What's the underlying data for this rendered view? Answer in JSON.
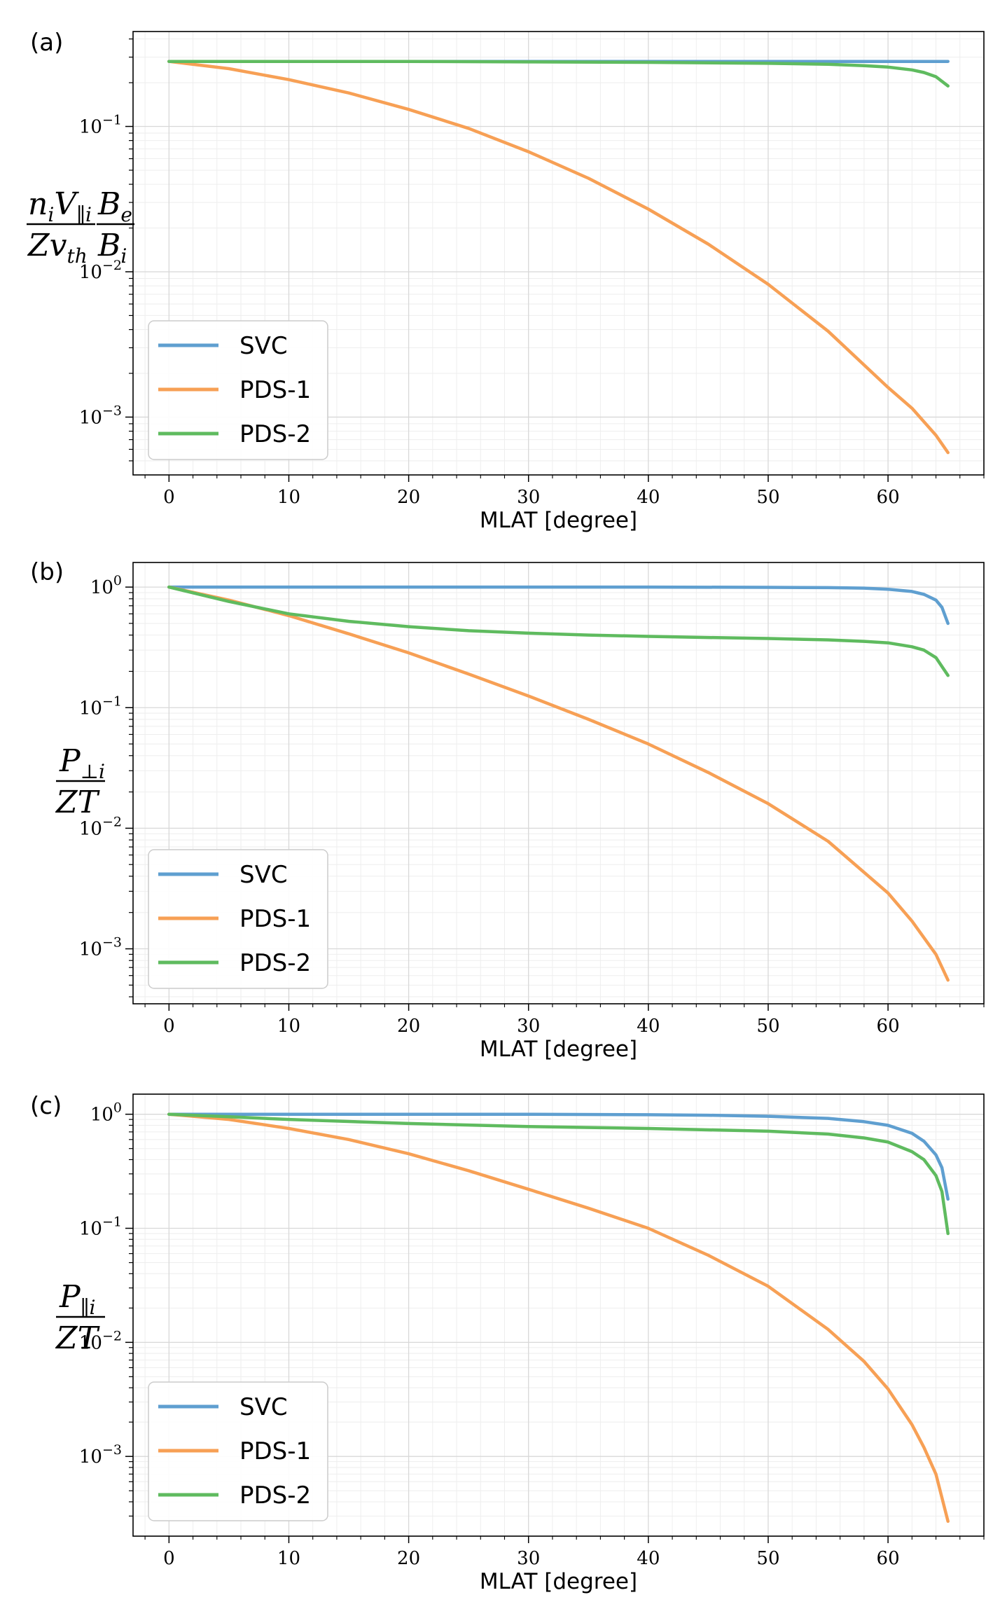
{
  "chart_data": [
    {
      "type": "line",
      "panel_label": "(a)",
      "xlabel": "MLAT [degree]",
      "ylabel": {
        "num_main": "n",
        "num_sub": "i",
        "num_main2": "V",
        "num_sub2": "∥i",
        "den_main": "Zv",
        "den_sub": "th",
        "ratio_num": "B",
        "ratio_num_sub": "e",
        "ratio_den": "B",
        "ratio_den_sub": "i"
      },
      "yscale": "log",
      "xlim": [
        -3,
        68
      ],
      "ylim": [
        0.0004,
        0.45
      ],
      "x_ticks": [
        0,
        10,
        20,
        30,
        40,
        50,
        60
      ],
      "y_ticks": [
        {
          "value": 0.1,
          "base": "10",
          "exp": "−1"
        },
        {
          "value": 0.01,
          "base": "10",
          "exp": "−2"
        },
        {
          "value": 0.001,
          "base": "10",
          "exp": "−3"
        }
      ],
      "grid": true,
      "legend_position": "lower-left",
      "series": [
        {
          "name": "SVC",
          "color": "#5f9fd0",
          "x": [
            0,
            10,
            20,
            30,
            40,
            50,
            55,
            60,
            63,
            65
          ],
          "y": [
            0.28,
            0.28,
            0.28,
            0.28,
            0.28,
            0.28,
            0.28,
            0.28,
            0.28,
            0.28
          ]
        },
        {
          "name": "PDS-1",
          "color": "#f7a055",
          "x": [
            0,
            5,
            10,
            15,
            20,
            25,
            30,
            35,
            40,
            45,
            50,
            55,
            60,
            62,
            64,
            65
          ],
          "y": [
            0.28,
            0.25,
            0.21,
            0.17,
            0.131,
            0.097,
            0.067,
            0.044,
            0.027,
            0.0155,
            0.0082,
            0.0039,
            0.0016,
            0.00115,
            0.00075,
            0.00057
          ]
        },
        {
          "name": "PDS-2",
          "color": "#5fbb5f",
          "x": [
            0,
            10,
            20,
            30,
            40,
            50,
            55,
            58,
            60,
            62,
            63,
            64,
            65
          ],
          "y": [
            0.28,
            0.28,
            0.28,
            0.278,
            0.276,
            0.272,
            0.268,
            0.262,
            0.256,
            0.245,
            0.235,
            0.22,
            0.19
          ]
        }
      ]
    },
    {
      "type": "line",
      "panel_label": "(b)",
      "xlabel": "MLAT [degree]",
      "ylabel": {
        "num_main": "P",
        "num_sub": "⊥i",
        "den_main": "ZT"
      },
      "yscale": "log",
      "xlim": [
        -3,
        68
      ],
      "ylim": [
        0.00035,
        1.6
      ],
      "x_ticks": [
        0,
        10,
        20,
        30,
        40,
        50,
        60
      ],
      "y_ticks": [
        {
          "value": 1,
          "base": "10",
          "exp": "0"
        },
        {
          "value": 0.1,
          "base": "10",
          "exp": "−1"
        },
        {
          "value": 0.01,
          "base": "10",
          "exp": "−2"
        },
        {
          "value": 0.001,
          "base": "10",
          "exp": "−3"
        }
      ],
      "grid": true,
      "legend_position": "lower-left",
      "series": [
        {
          "name": "SVC",
          "color": "#5f9fd0",
          "x": [
            0,
            10,
            20,
            30,
            40,
            50,
            55,
            58,
            60,
            62,
            63,
            64,
            64.5,
            65
          ],
          "y": [
            1.0,
            1.0,
            1.0,
            1.0,
            1.0,
            0.995,
            0.99,
            0.98,
            0.96,
            0.92,
            0.87,
            0.78,
            0.68,
            0.5
          ]
        },
        {
          "name": "PDS-1",
          "color": "#f7a055",
          "x": [
            0,
            5,
            10,
            15,
            20,
            25,
            30,
            35,
            40,
            45,
            50,
            55,
            60,
            62,
            64,
            65
          ],
          "y": [
            1.0,
            0.78,
            0.58,
            0.41,
            0.285,
            0.19,
            0.125,
            0.08,
            0.05,
            0.029,
            0.016,
            0.0078,
            0.0029,
            0.0017,
            0.0009,
            0.00055
          ]
        },
        {
          "name": "PDS-2",
          "color": "#5fbb5f",
          "x": [
            0,
            5,
            10,
            15,
            20,
            25,
            30,
            35,
            40,
            45,
            50,
            55,
            58,
            60,
            62,
            63,
            64,
            65
          ],
          "y": [
            1.0,
            0.76,
            0.6,
            0.52,
            0.47,
            0.435,
            0.415,
            0.4,
            0.39,
            0.382,
            0.375,
            0.365,
            0.355,
            0.345,
            0.32,
            0.3,
            0.26,
            0.185
          ]
        }
      ]
    },
    {
      "type": "line",
      "panel_label": "(c)",
      "xlabel": "MLAT [degree]",
      "ylabel": {
        "num_main": "P",
        "num_sub": "∥i",
        "den_main": "ZT"
      },
      "yscale": "log",
      "xlim": [
        -3,
        68
      ],
      "ylim": [
        0.0002,
        1.5
      ],
      "x_ticks": [
        0,
        10,
        20,
        30,
        40,
        50,
        60
      ],
      "y_ticks": [
        {
          "value": 1,
          "base": "10",
          "exp": "0"
        },
        {
          "value": 0.1,
          "base": "10",
          "exp": "−1"
        },
        {
          "value": 0.01,
          "base": "10",
          "exp": "−2"
        },
        {
          "value": 0.001,
          "base": "10",
          "exp": "−3"
        }
      ],
      "grid": true,
      "legend_position": "lower-left",
      "series": [
        {
          "name": "SVC",
          "color": "#5f9fd0",
          "x": [
            0,
            10,
            20,
            30,
            40,
            45,
            50,
            55,
            58,
            60,
            62,
            63,
            64,
            64.5,
            65
          ],
          "y": [
            1.0,
            1.0,
            1.0,
            1.0,
            0.99,
            0.98,
            0.96,
            0.92,
            0.86,
            0.8,
            0.68,
            0.58,
            0.44,
            0.34,
            0.18
          ]
        },
        {
          "name": "PDS-1",
          "color": "#f7a055",
          "x": [
            0,
            5,
            10,
            15,
            20,
            25,
            30,
            35,
            40,
            45,
            50,
            55,
            58,
            60,
            62,
            63,
            64,
            65
          ],
          "y": [
            1.0,
            0.9,
            0.75,
            0.6,
            0.45,
            0.32,
            0.22,
            0.15,
            0.1,
            0.058,
            0.031,
            0.013,
            0.0068,
            0.0039,
            0.0019,
            0.0012,
            0.0007,
            0.00027
          ]
        },
        {
          "name": "PDS-2",
          "color": "#5fbb5f",
          "x": [
            0,
            5,
            10,
            20,
            30,
            40,
            50,
            55,
            58,
            60,
            62,
            63,
            64,
            64.5,
            65
          ],
          "y": [
            1.0,
            0.95,
            0.9,
            0.83,
            0.78,
            0.75,
            0.71,
            0.67,
            0.62,
            0.57,
            0.47,
            0.4,
            0.29,
            0.21,
            0.09
          ]
        }
      ]
    }
  ]
}
